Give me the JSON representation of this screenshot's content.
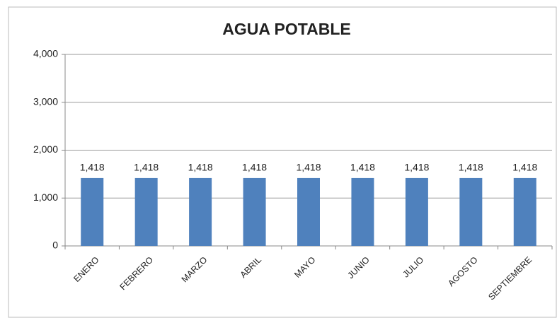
{
  "chart_data": {
    "type": "bar",
    "title": "AGUA POTABLE",
    "categories": [
      "ENERO",
      "FEBRERO",
      "MARZO",
      "ABRIL",
      "MAYO",
      "JUNIO",
      "JULIO",
      "AGOSTO",
      "SEPTIEMBRE"
    ],
    "values": [
      1418,
      1418,
      1418,
      1418,
      1418,
      1418,
      1418,
      1418,
      1418
    ],
    "value_labels": [
      "1,418",
      "1,418",
      "1,418",
      "1,418",
      "1,418",
      "1,418",
      "1,418",
      "1,418",
      "1,418"
    ],
    "color": "#4f81bd",
    "ylim": [
      0,
      4000
    ],
    "yticks": [
      0,
      {
        "value": 1000,
        "label": "1,000"
      },
      {
        "value": 2000,
        "label": "2,000"
      },
      {
        "value": 3000,
        "label": "3,000"
      },
      {
        "value": 4000,
        "label": "4,000"
      }
    ],
    "grid": true
  }
}
